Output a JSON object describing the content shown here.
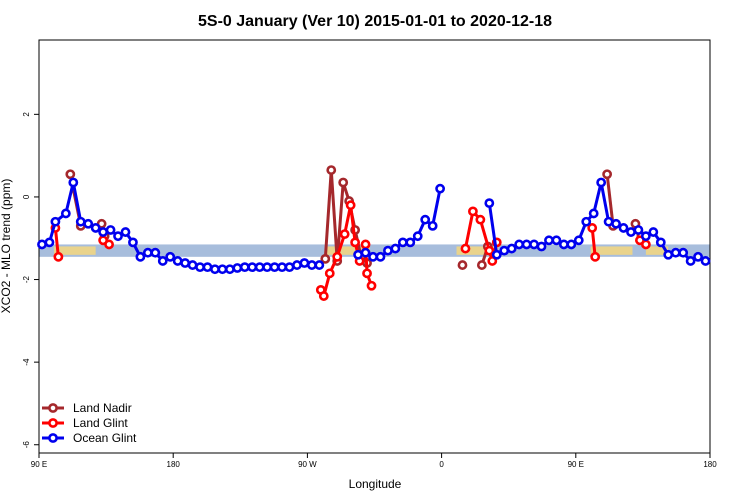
{
  "chart_data": {
    "type": "line",
    "title": "5S-0 January (Ver 10)   2015-01-01 to 2020-12-18",
    "xlabel": "Longitude",
    "ylabel": "XCO2 - MLO trend (ppm)",
    "x_ticks": [
      {
        "value": 90,
        "label": "90 E"
      },
      {
        "value": 180,
        "label": "180"
      },
      {
        "value": 270,
        "label": "90 W"
      },
      {
        "value": 360,
        "label": "0"
      },
      {
        "value": 450,
        "label": "90 E"
      },
      {
        "value": 540,
        "label": "180"
      }
    ],
    "y_ticks": [
      {
        "value": -6,
        "label": "-6"
      },
      {
        "value": -4,
        "label": "-4"
      },
      {
        "value": -2,
        "label": "-2"
      },
      {
        "value": 0,
        "label": "0"
      },
      {
        "value": 2,
        "label": "2"
      }
    ],
    "xlim": [
      90,
      540
    ],
    "ylim": [
      -6.2,
      3.8
    ],
    "grid": false,
    "legend_position": "bottom-left",
    "band": {
      "y_min": -1.45,
      "y_max": -1.15,
      "color": "#a7bddc",
      "land_color": "#f5d77e"
    },
    "series": [
      {
        "name": "Land Nadir",
        "color": "#a5282c",
        "points": [
          [
            111,
            0.55
          ],
          [
            118,
            -0.7
          ],
          [
            132,
            -0.65
          ],
          [
            134,
            -0.95
          ],
          [
            282,
            -1.5
          ],
          [
            286,
            0.65
          ],
          [
            290,
            -1.55
          ],
          [
            294,
            0.35
          ],
          [
            298,
            -0.1
          ],
          [
            302,
            -0.8
          ],
          [
            306,
            -1.45
          ],
          [
            310,
            -1.6
          ],
          [
            374,
            -1.65
          ],
          [
            387,
            -1.65
          ],
          [
            391,
            -1.2
          ],
          [
            471,
            0.55
          ],
          [
            475,
            -0.7
          ],
          [
            490,
            -0.65
          ],
          [
            494,
            -0.95
          ]
        ]
      },
      {
        "name": "Land Glint",
        "color": "#ff0000",
        "points": [
          [
            101,
            -0.75
          ],
          [
            103,
            -1.45
          ],
          [
            133,
            -1.05
          ],
          [
            137,
            -1.15
          ],
          [
            279,
            -2.25
          ],
          [
            281,
            -2.4
          ],
          [
            285,
            -1.85
          ],
          [
            290,
            -1.45
          ],
          [
            295,
            -0.9
          ],
          [
            299,
            -0.2
          ],
          [
            302,
            -1.1
          ],
          [
            305,
            -1.55
          ],
          [
            309,
            -1.15
          ],
          [
            310,
            -1.85
          ],
          [
            313,
            -2.15
          ],
          [
            376,
            -1.25
          ],
          [
            381,
            -0.35
          ],
          [
            386,
            -0.55
          ],
          [
            392,
            -1.3
          ],
          [
            394,
            -1.55
          ],
          [
            397,
            -1.1
          ],
          [
            461,
            -0.75
          ],
          [
            463,
            -1.45
          ],
          [
            493,
            -1.05
          ],
          [
            497,
            -1.15
          ]
        ]
      },
      {
        "name": "Ocean Glint",
        "color": "#0000ee",
        "points": [
          [
            92,
            -1.15
          ],
          [
            97,
            -1.1
          ],
          [
            101,
            -0.6
          ],
          [
            108,
            -0.4
          ],
          [
            113,
            0.35
          ],
          [
            118,
            -0.6
          ],
          [
            123,
            -0.65
          ],
          [
            128,
            -0.75
          ],
          [
            133,
            -0.85
          ],
          [
            138,
            -0.8
          ],
          [
            143,
            -0.95
          ],
          [
            148,
            -0.85
          ],
          [
            153,
            -1.1
          ],
          [
            158,
            -1.45
          ],
          [
            163,
            -1.35
          ],
          [
            168,
            -1.35
          ],
          [
            173,
            -1.55
          ],
          [
            178,
            -1.45
          ],
          [
            183,
            -1.55
          ],
          [
            188,
            -1.6
          ],
          [
            193,
            -1.65
          ],
          [
            198,
            -1.7
          ],
          [
            203,
            -1.7
          ],
          [
            208,
            -1.75
          ],
          [
            213,
            -1.75
          ],
          [
            218,
            -1.75
          ],
          [
            223,
            -1.72
          ],
          [
            228,
            -1.7
          ],
          [
            233,
            -1.7
          ],
          [
            238,
            -1.7
          ],
          [
            243,
            -1.7
          ],
          [
            248,
            -1.7
          ],
          [
            253,
            -1.7
          ],
          [
            258,
            -1.7
          ],
          [
            263,
            -1.65
          ],
          [
            268,
            -1.6
          ],
          [
            273,
            -1.65
          ],
          [
            278,
            -1.65
          ],
          [
            304,
            -1.4
          ],
          [
            309,
            -1.35
          ],
          [
            314,
            -1.45
          ],
          [
            319,
            -1.45
          ],
          [
            324,
            -1.3
          ],
          [
            329,
            -1.25
          ],
          [
            334,
            -1.1
          ],
          [
            339,
            -1.1
          ],
          [
            344,
            -0.95
          ],
          [
            349,
            -0.55
          ],
          [
            354,
            -0.7
          ],
          [
            359,
            0.2
          ],
          [
            392,
            -0.15
          ],
          [
            397,
            -1.4
          ],
          [
            402,
            -1.3
          ],
          [
            407,
            -1.25
          ],
          [
            412,
            -1.15
          ],
          [
            417,
            -1.15
          ],
          [
            422,
            -1.15
          ],
          [
            427,
            -1.2
          ],
          [
            432,
            -1.05
          ],
          [
            437,
            -1.05
          ],
          [
            442,
            -1.15
          ],
          [
            447,
            -1.15
          ],
          [
            452,
            -1.05
          ],
          [
            457,
            -0.6
          ],
          [
            462,
            -0.4
          ],
          [
            467,
            0.35
          ],
          [
            472,
            -0.6
          ],
          [
            477,
            -0.65
          ],
          [
            482,
            -0.75
          ],
          [
            487,
            -0.85
          ],
          [
            492,
            -0.8
          ],
          [
            497,
            -0.95
          ],
          [
            502,
            -0.85
          ],
          [
            507,
            -1.1
          ],
          [
            512,
            -1.4
          ],
          [
            517,
            -1.35
          ],
          [
            522,
            -1.35
          ],
          [
            527,
            -1.55
          ],
          [
            532,
            -1.45
          ],
          [
            537,
            -1.55
          ]
        ]
      }
    ]
  }
}
